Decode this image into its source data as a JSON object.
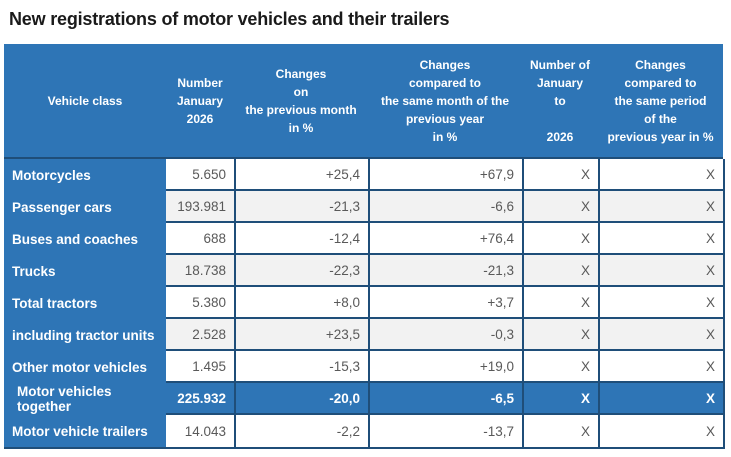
{
  "page": {
    "title": "New registrations of motor vehicles and their trailers"
  },
  "colors": {
    "header_blue": "#2E75B6",
    "border_navy": "#1F4E79",
    "zebra_gray": "#F2F2F2",
    "data_text_gray": "#595959"
  },
  "table": {
    "headers": {
      "vehicle_class": "Vehicle class",
      "number_jan": "Number\nJanuary\n2026",
      "change_prev_month": "Changes\non\nthe previous month\nin %",
      "change_same_month": "Changes\ncompared to\nthe same month of the\nprevious year\nin %",
      "number_ytd": "Number of\nJanuary\nto\n\n2026",
      "change_same_period": "Changes\ncompared to\nthe same period\nof the\nprevious year in %"
    },
    "rows": [
      {
        "label": "Motorcycles",
        "number": "5.650",
        "change_month": "+25,4",
        "change_year": "+67,9",
        "number_ytd": "X",
        "change_period": "X",
        "highlight": false
      },
      {
        "label": "Passenger cars",
        "number": "193.981",
        "change_month": "-21,3",
        "change_year": "-6,6",
        "number_ytd": "X",
        "change_period": "X",
        "highlight": false
      },
      {
        "label": "Buses and coaches",
        "number": "688",
        "change_month": "-12,4",
        "change_year": "+76,4",
        "number_ytd": "X",
        "change_period": "X",
        "highlight": false
      },
      {
        "label": "Trucks",
        "number": "18.738",
        "change_month": "-22,3",
        "change_year": "-21,3",
        "number_ytd": "X",
        "change_period": "X",
        "highlight": false
      },
      {
        "label": "Total tractors",
        "number": "5.380",
        "change_month": "+8,0",
        "change_year": "+3,7",
        "number_ytd": "X",
        "change_period": "X",
        "highlight": false
      },
      {
        "label": "including tractor units",
        "number": "2.528",
        "change_month": "+23,5",
        "change_year": "-0,3",
        "number_ytd": "X",
        "change_period": "X",
        "highlight": false
      },
      {
        "label": "Other motor vehicles",
        "number": "1.495",
        "change_month": "-15,3",
        "change_year": "+19,0",
        "number_ytd": "X",
        "change_period": "X",
        "highlight": false
      },
      {
        "label": "Motor vehicles together",
        "number": "225.932",
        "change_month": "-20,0",
        "change_year": "-6,5",
        "number_ytd": "X",
        "change_period": "X",
        "highlight": true
      },
      {
        "label": "Motor vehicle trailers",
        "number": "14.043",
        "change_month": "-2,2",
        "change_year": "-13,7",
        "number_ytd": "X",
        "change_period": "X",
        "highlight": false
      }
    ]
  }
}
